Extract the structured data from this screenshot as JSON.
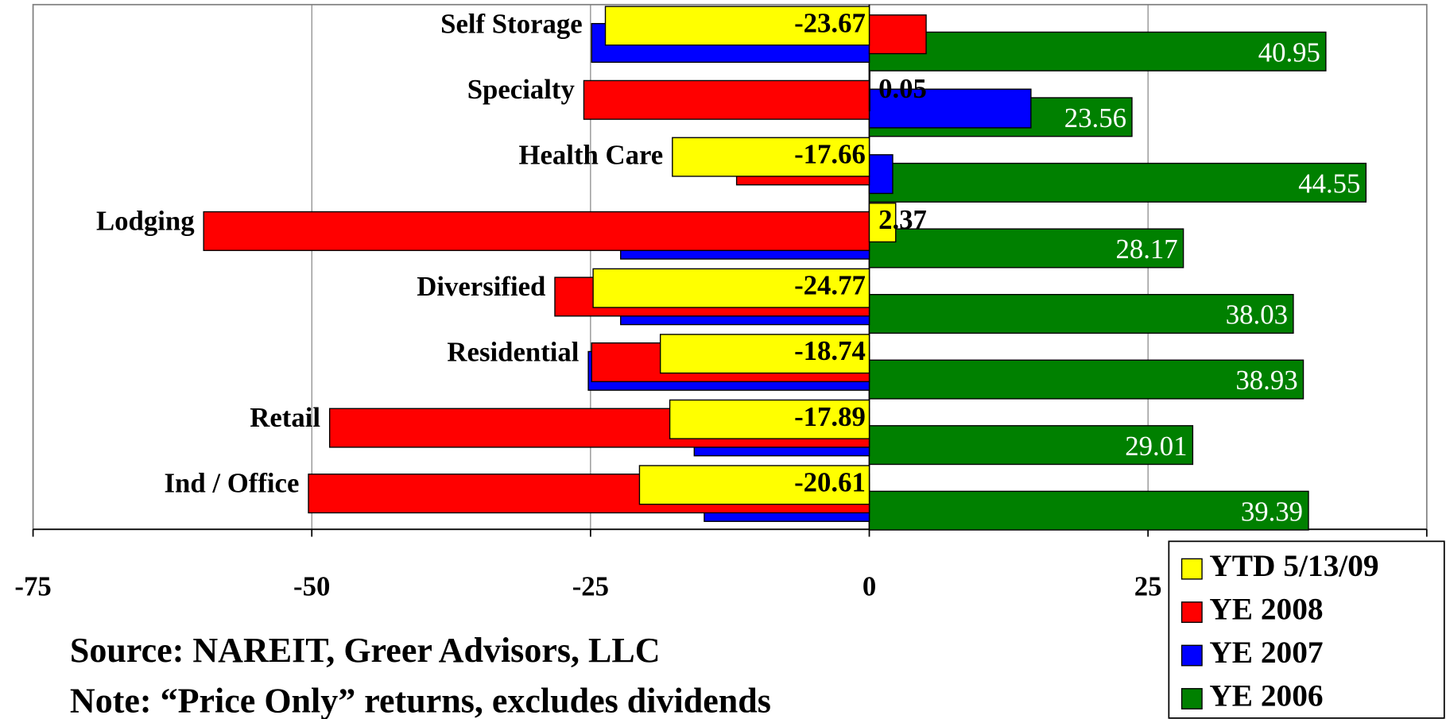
{
  "chart_data": {
    "type": "bar",
    "orientation": "horizontal",
    "categories": [
      "Self Storage",
      "Specialty",
      "Health Care",
      "Lodging",
      "Diversified",
      "Residential",
      "Retail",
      "Ind / Office"
    ],
    "series": [
      {
        "name": "YTD 5/13/09",
        "color": "#ffff00",
        "values": [
          -23.67,
          0.05,
          -17.66,
          2.37,
          -24.77,
          -18.74,
          -17.89,
          -20.61
        ],
        "labels": true
      },
      {
        "name": "YE 2008",
        "color": "#ff0000",
        "values": [
          5.1,
          -25.6,
          -11.9,
          -59.7,
          -28.2,
          -24.9,
          -48.4,
          -50.3
        ],
        "labels": false
      },
      {
        "name": "YE 2007",
        "color": "#0000ff",
        "values": [
          -24.9,
          14.5,
          2.1,
          -22.3,
          -22.3,
          -25.2,
          -15.7,
          -14.8
        ],
        "labels": false
      },
      {
        "name": "YE 2006",
        "color": "#008000",
        "values": [
          40.95,
          23.56,
          44.55,
          28.17,
          38.03,
          38.93,
          29.01,
          39.39
        ],
        "labels": true
      }
    ],
    "xlim": [
      -75,
      50
    ],
    "xticks": [
      -75,
      -50,
      -25,
      0,
      25,
      50
    ],
    "grid": true,
    "legend": "bottom-right",
    "source": "Source: NAREIT, Greer Advisors, LLC",
    "note": "Note: “Price Only” returns, excludes dividends"
  }
}
